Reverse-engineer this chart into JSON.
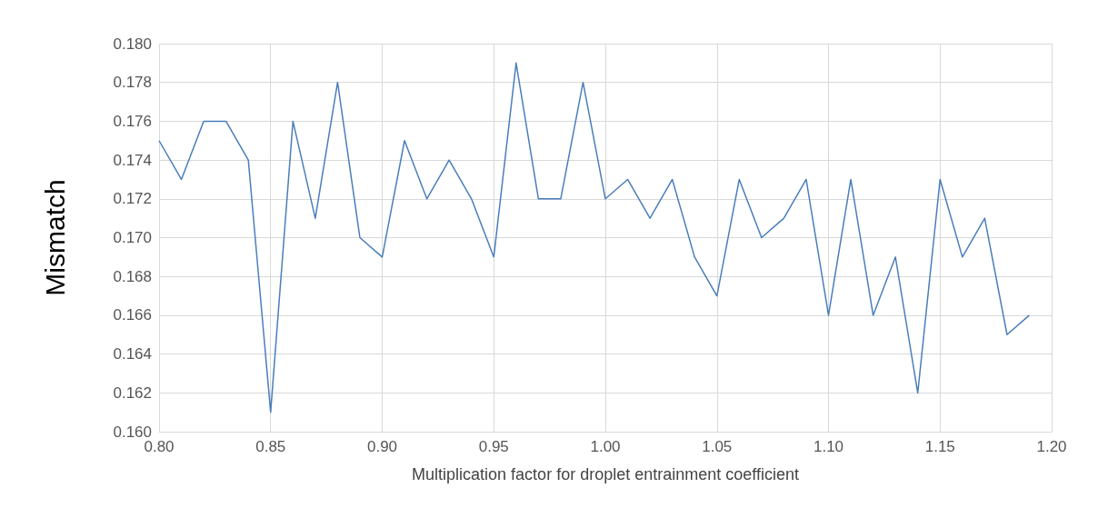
{
  "chart_data": {
    "type": "line",
    "xlabel": "Multiplication factor for droplet entrainment coefficient",
    "ylabel": "Mismatch",
    "x": [
      0.8,
      0.81,
      0.82,
      0.83,
      0.84,
      0.85,
      0.86,
      0.87,
      0.88,
      0.89,
      0.9,
      0.91,
      0.92,
      0.93,
      0.94,
      0.95,
      0.96,
      0.97,
      0.98,
      0.99,
      1.0,
      1.01,
      1.02,
      1.03,
      1.04,
      1.05,
      1.06,
      1.07,
      1.08,
      1.09,
      1.1,
      1.11,
      1.12,
      1.13,
      1.14,
      1.15,
      1.16,
      1.17,
      1.18,
      1.19
    ],
    "series": [
      {
        "color": "#4a7ebb",
        "values": [
          0.175,
          0.173,
          0.176,
          0.176,
          0.174,
          0.161,
          0.176,
          0.171,
          0.178,
          0.17,
          0.169,
          0.175,
          0.172,
          0.174,
          0.172,
          0.169,
          0.179,
          0.172,
          0.172,
          0.178,
          0.172,
          0.173,
          0.171,
          0.173,
          0.169,
          0.167,
          0.173,
          0.17,
          0.171,
          0.173,
          0.166,
          0.173,
          0.166,
          0.169,
          0.162,
          0.173,
          0.169,
          0.171,
          0.165,
          0.166
        ]
      }
    ],
    "xlim": [
      0.8,
      1.2
    ],
    "xticks": [
      {
        "value": 0.8,
        "label": "0.80"
      },
      {
        "value": 0.85,
        "label": "0.85"
      },
      {
        "value": 0.9,
        "label": "0.90"
      },
      {
        "value": 0.95,
        "label": "0.95"
      },
      {
        "value": 1.0,
        "label": "1.00"
      },
      {
        "value": 1.05,
        "label": "1.05"
      },
      {
        "value": 1.1,
        "label": "1.10"
      },
      {
        "value": 1.15,
        "label": "1.15"
      },
      {
        "value": 1.2,
        "label": "1.20"
      }
    ],
    "ylim": [
      0.16,
      0.18
    ],
    "yticks": [
      {
        "value": 0.16,
        "label": "0.160"
      },
      {
        "value": 0.162,
        "label": "0.162"
      },
      {
        "value": 0.164,
        "label": "0.164"
      },
      {
        "value": 0.166,
        "label": "0.166"
      },
      {
        "value": 0.168,
        "label": "0.168"
      },
      {
        "value": 0.17,
        "label": "0.170"
      },
      {
        "value": 0.172,
        "label": "0.172"
      },
      {
        "value": 0.174,
        "label": "0.174"
      },
      {
        "value": 0.176,
        "label": "0.176"
      },
      {
        "value": 0.178,
        "label": "0.178"
      },
      {
        "value": 0.18,
        "label": "0.180"
      }
    ],
    "grid": true,
    "marker": "none",
    "line_style": "solid"
  }
}
